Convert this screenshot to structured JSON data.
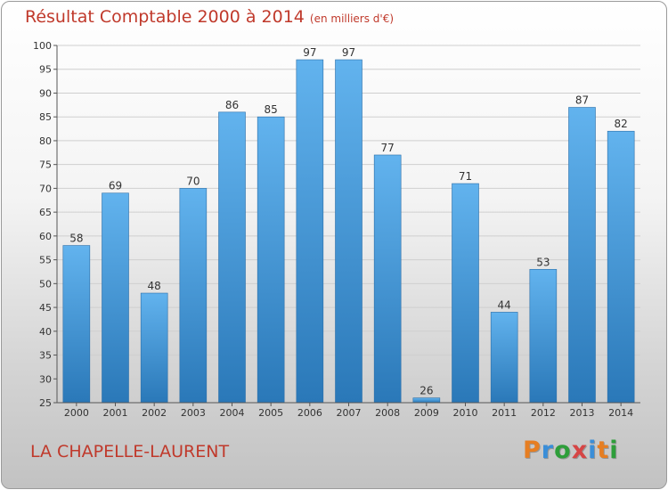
{
  "header": {
    "title": "Résultat Comptable 2000 à 2014",
    "unit": "(en milliers d'€)"
  },
  "footer": {
    "location": "LA CHAPELLE-LAURENT"
  },
  "brand": {
    "letters": [
      "P",
      "r",
      "o",
      "x",
      "i",
      "t",
      "i"
    ],
    "colors": [
      "#e67e22",
      "#3a8ed8",
      "#2e9e3a",
      "#d64545",
      "#3a8ed8",
      "#e67e22",
      "#2e9e3a"
    ]
  },
  "colors": {
    "bar_light": "#62b3ee",
    "bar_dark": "#2a78b8",
    "grid": "#cfcfcf",
    "title": "#c0392b"
  },
  "chart_data": {
    "type": "bar",
    "title": "Résultat Comptable 2000 à 2014",
    "subtitle": "(en milliers d'€)",
    "categories": [
      "2000",
      "2001",
      "2002",
      "2003",
      "2004",
      "2005",
      "2006",
      "2007",
      "2008",
      "2009",
      "2010",
      "2011",
      "2012",
      "2013",
      "2014"
    ],
    "values": [
      58,
      69,
      48,
      70,
      86,
      85,
      97,
      97,
      77,
      26,
      71,
      44,
      53,
      87,
      82
    ],
    "data_labels": [
      "58",
      "69",
      "48",
      "70",
      "86",
      "85",
      "97",
      "97",
      "77",
      "26",
      "71",
      "44",
      "53",
      "87",
      "82"
    ],
    "y_ticks": [
      25,
      30,
      35,
      40,
      45,
      50,
      55,
      60,
      65,
      70,
      75,
      80,
      85,
      90,
      95,
      100
    ],
    "ylim": [
      25,
      100
    ],
    "grid": true,
    "xlabel": "",
    "ylabel": ""
  }
}
